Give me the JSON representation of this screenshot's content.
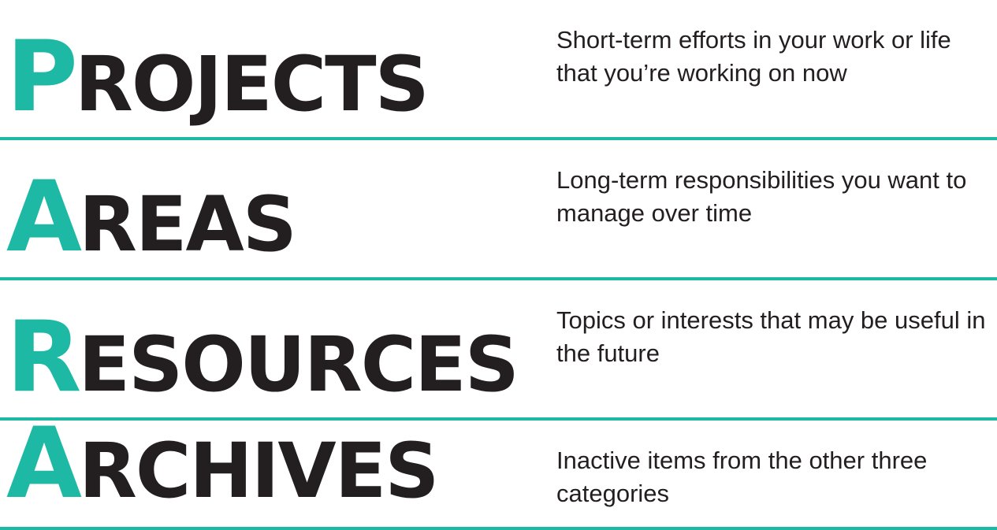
{
  "accent_color": "#1db9a5",
  "text_color": "#231f20",
  "rows": [
    {
      "initial": "P",
      "rest": "ROJECTS",
      "description": "Short-term efforts in your work or life that you’re working on now"
    },
    {
      "initial": "A",
      "rest": "REAS",
      "description": "Long-term responsibilities you want to manage over time"
    },
    {
      "initial": "R",
      "rest": "ESOURCES",
      "description": "Topics or interests that may be useful in the future"
    },
    {
      "initial": "A",
      "rest": "RCHIVES",
      "description": "Inactive items from the other three categories"
    }
  ]
}
